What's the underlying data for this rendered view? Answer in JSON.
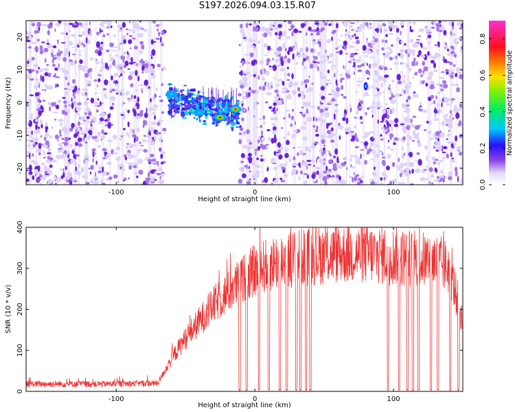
{
  "title": "S197.2026.094.03.15.R07",
  "chart_data": [
    {
      "type": "heatmap",
      "xlabel": "Height of straight line (km)",
      "ylabel": "Frequency (Hz)",
      "xlim": [
        -165,
        150
      ],
      "ylim": [
        -25,
        25
      ],
      "xticks": [
        -100,
        0,
        100
      ],
      "yticks": [
        -20,
        -10,
        0,
        10,
        20
      ],
      "gap_x": [
        -65,
        -11
      ],
      "signal": {
        "x_range": [
          -62,
          -12
        ],
        "freq_center": -2,
        "peaks": [
          {
            "x": -25,
            "y": -4.5,
            "amplitude": 0.85
          },
          {
            "x": -14,
            "y": -2.0,
            "amplitude": 0.85
          },
          {
            "x": -60,
            "y": 2.5,
            "amplitude": 0.35
          },
          {
            "x": -40,
            "y": -3.0,
            "amplitude": 0.35
          }
        ]
      },
      "isolated_blob": {
        "x": 80,
        "y": 5,
        "amplitude": 0.3
      },
      "colorbar": {
        "label": "Normalized spectral amplitude",
        "range": [
          0.0,
          0.9
        ],
        "ticks": [
          0.0,
          0.2,
          0.4,
          0.6,
          0.8
        ]
      }
    },
    {
      "type": "line",
      "xlabel": "Height of straight line (km)",
      "ylabel": "SNR (10 * v/v)",
      "xlim": [
        -165,
        150
      ],
      "ylim": [
        0,
        400
      ],
      "xticks": [
        -100,
        0,
        100
      ],
      "yticks": [
        0,
        100,
        200,
        300,
        400
      ],
      "series": [
        {
          "name": "SNR",
          "color": "#ee3333",
          "profile_x": [
            -165,
            -110,
            -70,
            -60,
            -50,
            -40,
            -30,
            -20,
            -10,
            0,
            10,
            20,
            30,
            40,
            60,
            80,
            100,
            110,
            120,
            130,
            140,
            145,
            150
          ],
          "profile_y": [
            18,
            18,
            20,
            80,
            130,
            170,
            210,
            240,
            270,
            295,
            310,
            320,
            325,
            330,
            335,
            335,
            330,
            325,
            320,
            320,
            300,
            240,
            170
          ],
          "dropouts_x": [
            -11,
            -6,
            3,
            10,
            18,
            23,
            30,
            33,
            37,
            40,
            96,
            104,
            110,
            114,
            118,
            127,
            132,
            141,
            147
          ]
        }
      ]
    }
  ]
}
